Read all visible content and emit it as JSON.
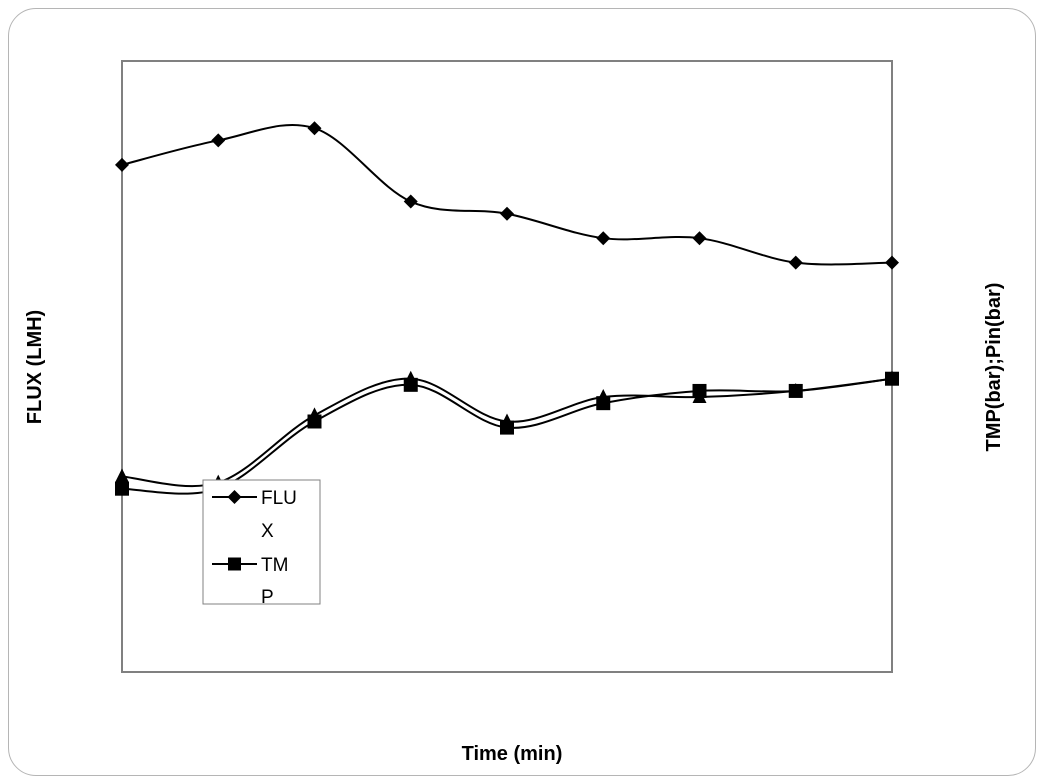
{
  "chart_data": {
    "type": "line",
    "title": "",
    "xlabel": "Time (min)",
    "ylabel": "FLUX (LMH)",
    "y2label": "TMP(bar);Pin(bar)",
    "x": [
      1,
      2,
      3,
      4,
      5,
      6,
      7,
      8,
      9
    ],
    "xlim": [
      1,
      9
    ],
    "ylim": [
      0,
      100
    ],
    "y2lim": [
      0,
      100
    ],
    "tick_labels_shown": false,
    "grid": false,
    "legend_position": "left",
    "series": [
      {
        "name": "FLUX",
        "legend_lines": [
          "FLU",
          "X"
        ],
        "marker": "diamond",
        "axis": "left",
        "color": "#000000",
        "values": [
          83,
          87,
          89,
          77,
          75,
          71,
          71,
          67,
          67
        ]
      },
      {
        "name": "TMP",
        "legend_lines": [
          "TM",
          "P"
        ],
        "marker": "square",
        "axis": "right",
        "color": "#000000",
        "values": [
          30,
          30,
          41,
          47,
          40,
          44,
          46,
          46,
          48
        ]
      },
      {
        "marker": "triangle",
        "axis": "right",
        "color": "#000000",
        "values": [
          32,
          31,
          42,
          48,
          41,
          45,
          45,
          46,
          48
        ]
      }
    ]
  }
}
